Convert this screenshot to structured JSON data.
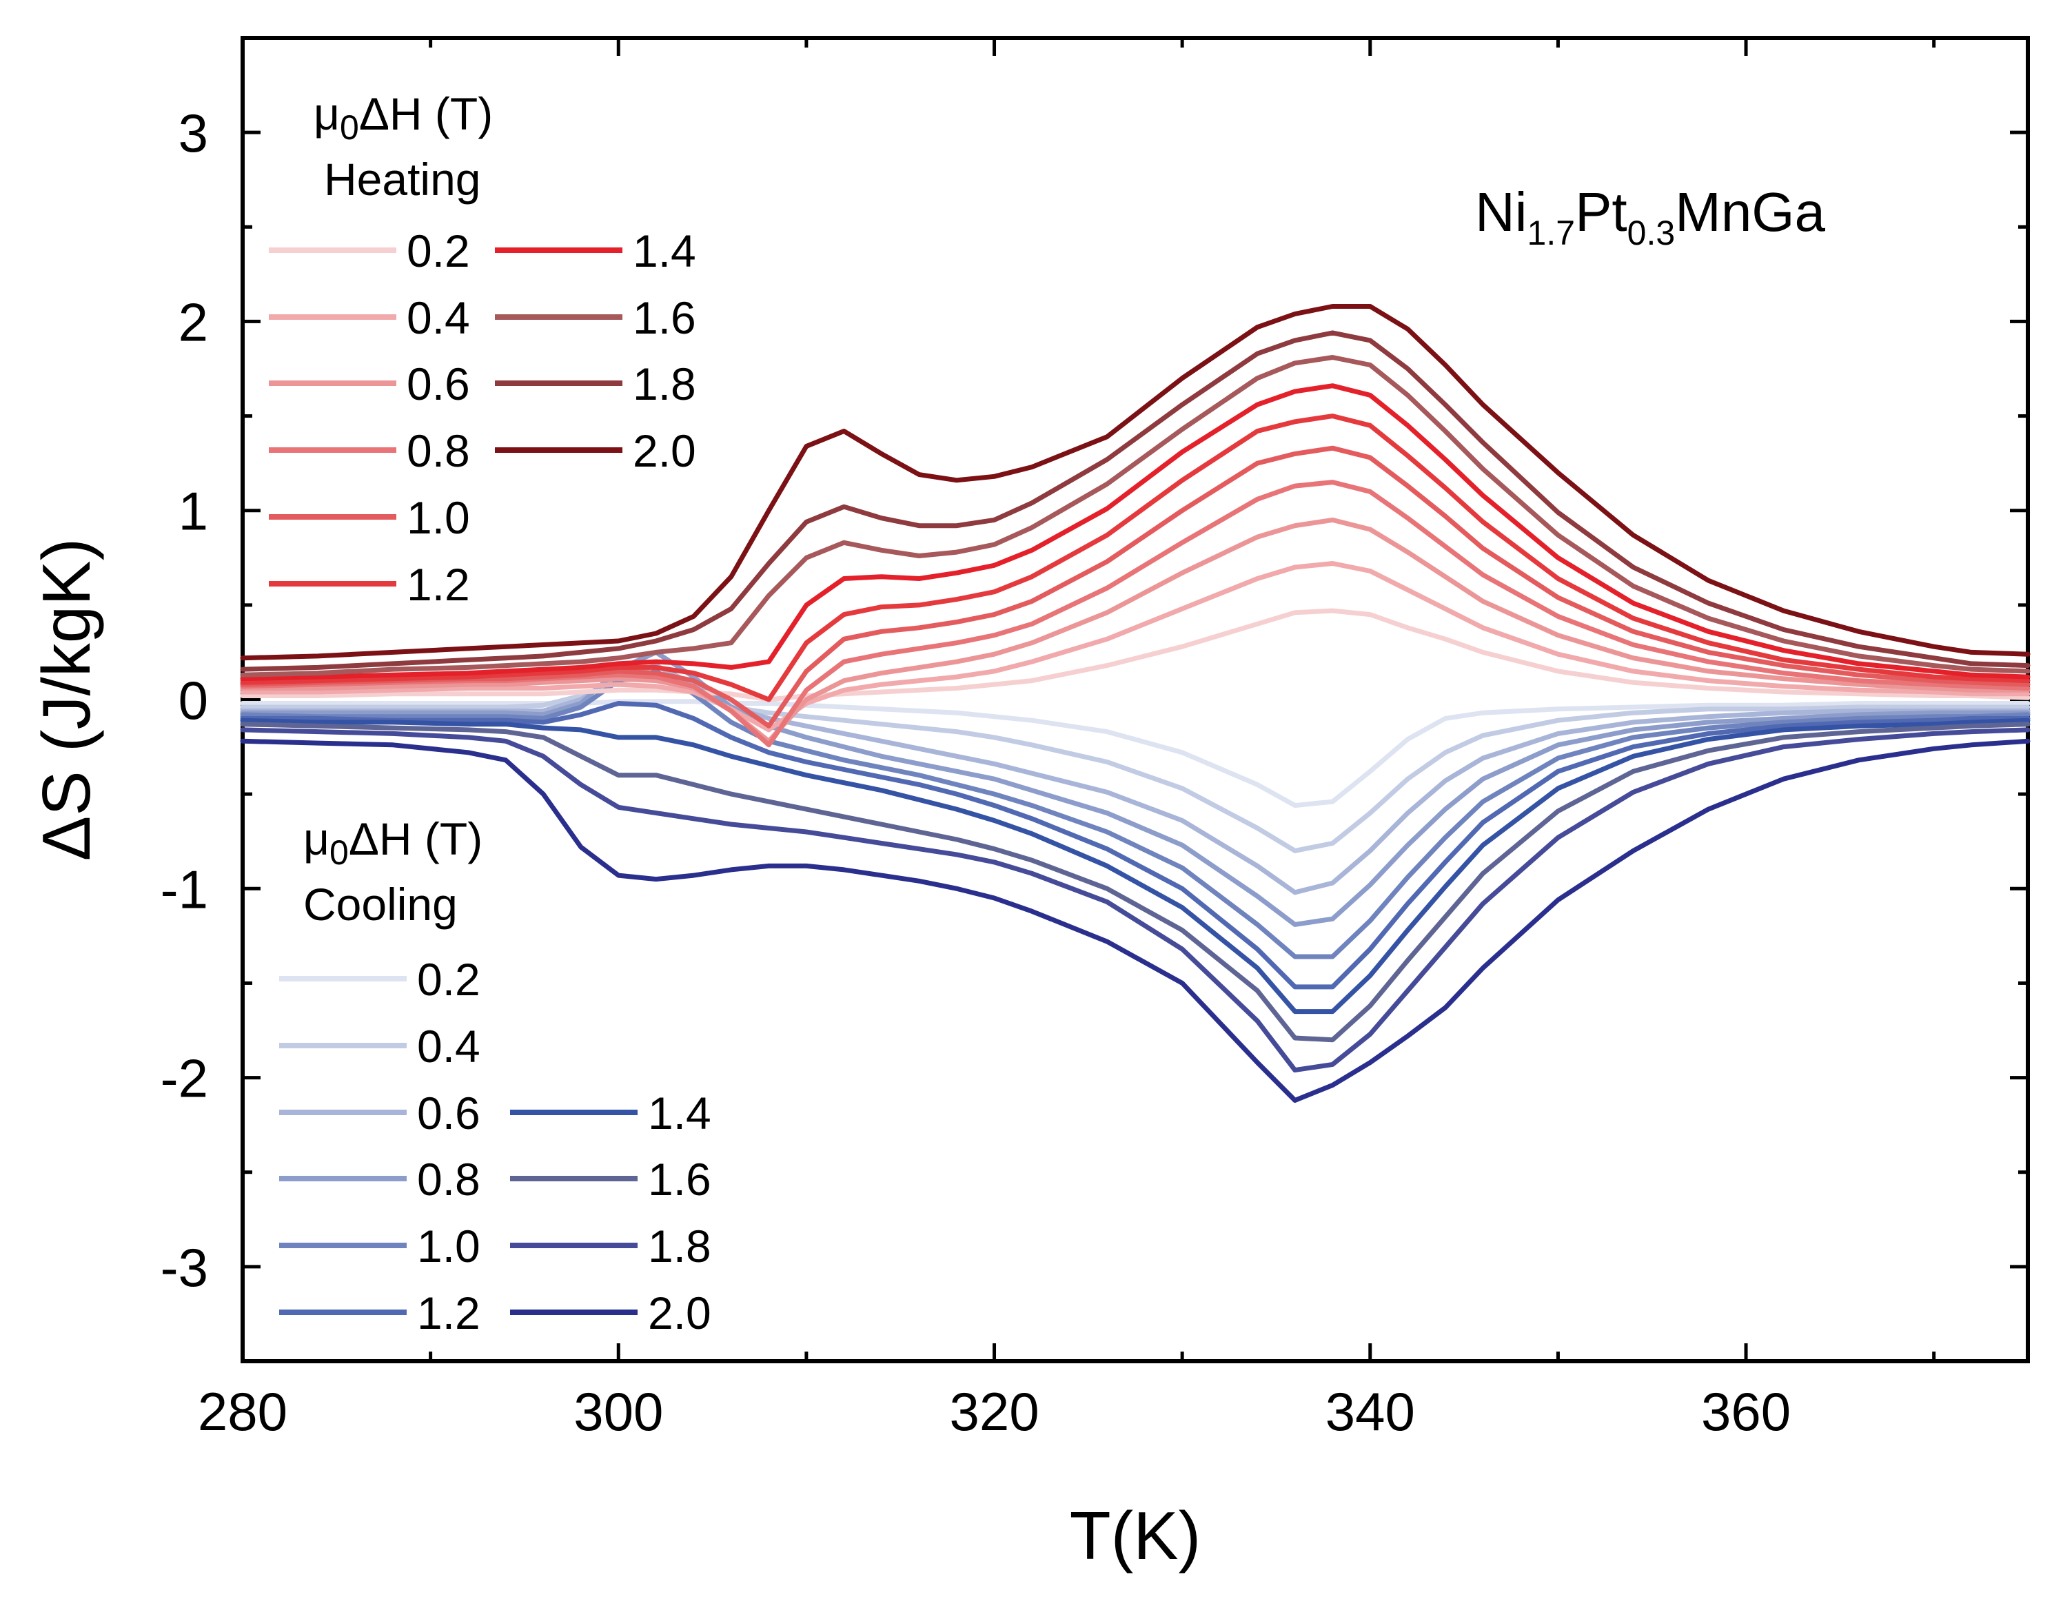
{
  "chart_data": {
    "type": "line",
    "xlabel": "T(K)",
    "ylabel": "ΔS (J/kgK)",
    "xlim": [
      280,
      375
    ],
    "ylim": [
      -3.5,
      3.5
    ],
    "xticks": [
      280,
      300,
      320,
      340,
      360
    ],
    "yticks": [
      -3,
      -2,
      -1,
      0,
      1,
      2,
      3
    ],
    "xtick_labels": [
      "280",
      "300",
      "320",
      "340",
      "360"
    ],
    "ytick_labels": [
      "-3",
      "-2",
      "-1",
      "0",
      "1",
      "2",
      "3"
    ],
    "annotation": {
      "base1": "Ni",
      "sub1": "1.7",
      "base2": "Pt",
      "sub2": "0.3",
      "base3": "MnGa"
    },
    "legends": [
      {
        "group": "heating",
        "title_line1": "μ",
        "title_sub": "0",
        "title_rest": "ΔH (T)",
        "title_line2": "Heating"
      },
      {
        "group": "cooling",
        "title_line1": "μ",
        "title_sub": "0",
        "title_rest": "ΔH (T)",
        "title_line2": "Cooling"
      }
    ],
    "heating_colors": [
      "#f6d0d1",
      "#f1a9ab",
      "#ec9597",
      "#e87477",
      "#e45b5e",
      "#e53a3d",
      "#e4212a",
      "#a6585b",
      "#8e3a3e",
      "#7b1015"
    ],
    "cooling_colors": [
      "#dde3f1",
      "#c2cbe4",
      "#a8b5d8",
      "#8c9dcb",
      "#6f84be",
      "#5169b2",
      "#3553a5",
      "#5e6594",
      "#454b98",
      "#2a2f8e"
    ],
    "x": [
      280,
      284,
      288,
      292,
      294,
      296,
      298,
      300,
      302,
      304,
      306,
      308,
      310,
      312,
      314,
      316,
      318,
      320,
      322,
      326,
      330,
      334,
      336,
      338,
      340,
      342,
      344,
      346,
      350,
      354,
      358,
      362,
      366,
      370,
      372,
      375
    ],
    "series_heating": [
      {
        "name": "0.2",
        "values": [
          0.02,
          0.02,
          0.03,
          0.03,
          0.03,
          0.03,
          0.04,
          0.05,
          0.05,
          0.04,
          0.03,
          0.0,
          0.02,
          0.03,
          0.04,
          0.05,
          0.06,
          0.08,
          0.1,
          0.18,
          0.28,
          0.4,
          0.46,
          0.47,
          0.45,
          0.38,
          0.32,
          0.25,
          0.15,
          0.09,
          0.06,
          0.04,
          0.03,
          0.02,
          0.02,
          0.01
        ]
      },
      {
        "name": "0.4",
        "values": [
          0.04,
          0.04,
          0.05,
          0.06,
          0.06,
          0.06,
          0.07,
          0.08,
          0.07,
          0.04,
          -0.05,
          -0.16,
          -0.02,
          0.05,
          0.08,
          0.1,
          0.12,
          0.15,
          0.2,
          0.32,
          0.48,
          0.64,
          0.7,
          0.72,
          0.68,
          0.58,
          0.48,
          0.38,
          0.24,
          0.15,
          0.1,
          0.07,
          0.05,
          0.04,
          0.03,
          0.03
        ]
      },
      {
        "name": "0.6",
        "values": [
          0.06,
          0.06,
          0.07,
          0.08,
          0.08,
          0.09,
          0.1,
          0.11,
          0.1,
          0.06,
          -0.06,
          -0.22,
          0.0,
          0.1,
          0.14,
          0.17,
          0.2,
          0.24,
          0.3,
          0.46,
          0.67,
          0.86,
          0.92,
          0.95,
          0.9,
          0.78,
          0.65,
          0.52,
          0.34,
          0.22,
          0.15,
          0.11,
          0.08,
          0.06,
          0.05,
          0.05
        ]
      },
      {
        "name": "0.8",
        "values": [
          0.07,
          0.08,
          0.09,
          0.1,
          0.1,
          0.11,
          0.12,
          0.13,
          0.12,
          0.07,
          -0.06,
          -0.24,
          0.05,
          0.2,
          0.24,
          0.27,
          0.3,
          0.34,
          0.4,
          0.59,
          0.83,
          1.06,
          1.13,
          1.15,
          1.1,
          0.96,
          0.81,
          0.66,
          0.44,
          0.29,
          0.2,
          0.14,
          0.1,
          0.08,
          0.07,
          0.06
        ]
      },
      {
        "name": "1.0",
        "values": [
          0.08,
          0.09,
          0.1,
          0.11,
          0.11,
          0.12,
          0.13,
          0.15,
          0.14,
          0.1,
          0.0,
          -0.14,
          0.15,
          0.32,
          0.36,
          0.38,
          0.41,
          0.45,
          0.52,
          0.73,
          1.0,
          1.25,
          1.3,
          1.33,
          1.28,
          1.13,
          0.97,
          0.8,
          0.54,
          0.36,
          0.25,
          0.18,
          0.13,
          0.1,
          0.09,
          0.08
        ]
      },
      {
        "name": "1.2",
        "values": [
          0.09,
          0.1,
          0.11,
          0.12,
          0.13,
          0.14,
          0.15,
          0.17,
          0.17,
          0.14,
          0.08,
          0.0,
          0.3,
          0.45,
          0.49,
          0.5,
          0.53,
          0.57,
          0.65,
          0.87,
          1.16,
          1.42,
          1.47,
          1.5,
          1.45,
          1.29,
          1.12,
          0.94,
          0.64,
          0.43,
          0.3,
          0.21,
          0.16,
          0.12,
          0.11,
          0.1
        ]
      },
      {
        "name": "1.4",
        "values": [
          0.11,
          0.12,
          0.13,
          0.14,
          0.15,
          0.16,
          0.17,
          0.19,
          0.2,
          0.19,
          0.17,
          0.2,
          0.5,
          0.64,
          0.65,
          0.64,
          0.67,
          0.71,
          0.79,
          1.01,
          1.31,
          1.56,
          1.63,
          1.66,
          1.61,
          1.45,
          1.27,
          1.08,
          0.75,
          0.51,
          0.36,
          0.26,
          0.19,
          0.15,
          0.13,
          0.12
        ]
      },
      {
        "name": "1.6",
        "values": [
          0.13,
          0.14,
          0.16,
          0.17,
          0.18,
          0.19,
          0.2,
          0.22,
          0.25,
          0.27,
          0.3,
          0.55,
          0.75,
          0.83,
          0.79,
          0.76,
          0.78,
          0.82,
          0.91,
          1.14,
          1.43,
          1.7,
          1.78,
          1.81,
          1.77,
          1.61,
          1.42,
          1.22,
          0.87,
          0.6,
          0.43,
          0.31,
          0.23,
          0.18,
          0.16,
          0.15
        ]
      },
      {
        "name": "1.8",
        "values": [
          0.16,
          0.17,
          0.19,
          0.21,
          0.22,
          0.23,
          0.25,
          0.27,
          0.31,
          0.37,
          0.48,
          0.72,
          0.94,
          1.02,
          0.96,
          0.92,
          0.92,
          0.95,
          1.04,
          1.27,
          1.56,
          1.83,
          1.9,
          1.94,
          1.9,
          1.75,
          1.56,
          1.36,
          0.99,
          0.7,
          0.51,
          0.37,
          0.28,
          0.22,
          0.19,
          0.18
        ]
      },
      {
        "name": "2.0",
        "values": [
          0.22,
          0.23,
          0.25,
          0.27,
          0.28,
          0.29,
          0.3,
          0.31,
          0.35,
          0.44,
          0.65,
          1.0,
          1.34,
          1.42,
          1.3,
          1.19,
          1.16,
          1.18,
          1.23,
          1.39,
          1.7,
          1.97,
          2.04,
          2.08,
          2.08,
          1.96,
          1.77,
          1.56,
          1.2,
          0.87,
          0.63,
          0.47,
          0.36,
          0.28,
          0.25,
          0.24
        ]
      }
    ],
    "series_cooling": [
      {
        "name": "0.2",
        "values": [
          -0.02,
          -0.02,
          -0.02,
          -0.02,
          -0.02,
          -0.02,
          -0.02,
          -0.01,
          -0.01,
          -0.01,
          -0.02,
          -0.02,
          -0.03,
          -0.04,
          -0.05,
          -0.06,
          -0.07,
          -0.09,
          -0.11,
          -0.17,
          -0.28,
          -0.45,
          -0.56,
          -0.54,
          -0.38,
          -0.21,
          -0.1,
          -0.07,
          -0.05,
          -0.04,
          -0.03,
          -0.03,
          -0.02,
          -0.02,
          -0.02,
          -0.02
        ]
      },
      {
        "name": "0.4",
        "values": [
          -0.04,
          -0.04,
          -0.04,
          -0.04,
          -0.04,
          -0.03,
          0.02,
          0.1,
          0.12,
          0.04,
          -0.04,
          -0.07,
          -0.09,
          -0.11,
          -0.13,
          -0.15,
          -0.17,
          -0.2,
          -0.24,
          -0.33,
          -0.47,
          -0.68,
          -0.8,
          -0.76,
          -0.6,
          -0.42,
          -0.28,
          -0.19,
          -0.11,
          -0.07,
          -0.05,
          -0.05,
          -0.04,
          -0.04,
          -0.04,
          -0.04
        ]
      },
      {
        "name": "0.6",
        "values": [
          -0.06,
          -0.06,
          -0.06,
          -0.06,
          -0.06,
          -0.06,
          0.0,
          0.12,
          0.18,
          0.08,
          -0.04,
          -0.1,
          -0.14,
          -0.18,
          -0.22,
          -0.26,
          -0.3,
          -0.34,
          -0.39,
          -0.49,
          -0.64,
          -0.88,
          -1.02,
          -0.97,
          -0.8,
          -0.6,
          -0.43,
          -0.31,
          -0.18,
          -0.12,
          -0.09,
          -0.07,
          -0.06,
          -0.06,
          -0.06,
          -0.06
        ]
      },
      {
        "name": "0.8",
        "values": [
          -0.07,
          -0.07,
          -0.07,
          -0.07,
          -0.07,
          -0.08,
          -0.02,
          0.16,
          0.25,
          0.12,
          -0.04,
          -0.14,
          -0.2,
          -0.25,
          -0.3,
          -0.34,
          -0.38,
          -0.42,
          -0.48,
          -0.6,
          -0.77,
          -1.04,
          -1.19,
          -1.16,
          -0.98,
          -0.77,
          -0.58,
          -0.42,
          -0.24,
          -0.16,
          -0.12,
          -0.1,
          -0.08,
          -0.07,
          -0.07,
          -0.07
        ]
      },
      {
        "name": "1.0",
        "values": [
          -0.08,
          -0.09,
          -0.09,
          -0.09,
          -0.09,
          -0.1,
          -0.04,
          0.1,
          0.15,
          0.03,
          -0.12,
          -0.22,
          -0.27,
          -0.32,
          -0.36,
          -0.4,
          -0.45,
          -0.5,
          -0.56,
          -0.7,
          -0.89,
          -1.19,
          -1.36,
          -1.36,
          -1.17,
          -0.94,
          -0.73,
          -0.54,
          -0.31,
          -0.2,
          -0.15,
          -0.12,
          -0.1,
          -0.09,
          -0.09,
          -0.08
        ]
      },
      {
        "name": "1.2",
        "values": [
          -0.1,
          -0.1,
          -0.11,
          -0.11,
          -0.11,
          -0.12,
          -0.08,
          -0.02,
          -0.03,
          -0.1,
          -0.2,
          -0.28,
          -0.33,
          -0.37,
          -0.41,
          -0.45,
          -0.5,
          -0.56,
          -0.63,
          -0.79,
          -1.0,
          -1.32,
          -1.52,
          -1.52,
          -1.32,
          -1.08,
          -0.86,
          -0.65,
          -0.38,
          -0.25,
          -0.18,
          -0.14,
          -0.12,
          -0.11,
          -0.1,
          -0.1
        ]
      },
      {
        "name": "1.4",
        "values": [
          -0.11,
          -0.12,
          -0.12,
          -0.13,
          -0.13,
          -0.15,
          -0.16,
          -0.2,
          -0.2,
          -0.24,
          -0.3,
          -0.35,
          -0.4,
          -0.44,
          -0.48,
          -0.53,
          -0.58,
          -0.64,
          -0.71,
          -0.88,
          -1.1,
          -1.42,
          -1.65,
          -1.65,
          -1.46,
          -1.22,
          -0.99,
          -0.77,
          -0.47,
          -0.3,
          -0.21,
          -0.16,
          -0.14,
          -0.13,
          -0.12,
          -0.11
        ]
      },
      {
        "name": "1.6",
        "values": [
          -0.13,
          -0.14,
          -0.15,
          -0.16,
          -0.17,
          -0.2,
          -0.3,
          -0.4,
          -0.4,
          -0.45,
          -0.5,
          -0.54,
          -0.58,
          -0.62,
          -0.66,
          -0.7,
          -0.74,
          -0.79,
          -0.85,
          -1.0,
          -1.22,
          -1.54,
          -1.79,
          -1.8,
          -1.62,
          -1.38,
          -1.15,
          -0.92,
          -0.59,
          -0.38,
          -0.27,
          -0.2,
          -0.17,
          -0.15,
          -0.14,
          -0.13
        ]
      },
      {
        "name": "1.8",
        "values": [
          -0.16,
          -0.17,
          -0.18,
          -0.2,
          -0.22,
          -0.3,
          -0.45,
          -0.57,
          -0.6,
          -0.63,
          -0.66,
          -0.68,
          -0.7,
          -0.73,
          -0.76,
          -0.79,
          -0.82,
          -0.86,
          -0.92,
          -1.07,
          -1.32,
          -1.7,
          -1.96,
          -1.93,
          -1.77,
          -1.54,
          -1.31,
          -1.08,
          -0.73,
          -0.49,
          -0.34,
          -0.25,
          -0.21,
          -0.18,
          -0.17,
          -0.16
        ]
      },
      {
        "name": "2.0",
        "values": [
          -0.22,
          -0.23,
          -0.24,
          -0.28,
          -0.32,
          -0.5,
          -0.78,
          -0.93,
          -0.95,
          -0.93,
          -0.9,
          -0.88,
          -0.88,
          -0.9,
          -0.93,
          -0.96,
          -1.0,
          -1.05,
          -1.12,
          -1.28,
          -1.5,
          -1.92,
          -2.12,
          -2.04,
          -1.92,
          -1.78,
          -1.63,
          -1.42,
          -1.06,
          -0.8,
          -0.58,
          -0.42,
          -0.32,
          -0.26,
          -0.24,
          -0.22
        ]
      }
    ]
  }
}
